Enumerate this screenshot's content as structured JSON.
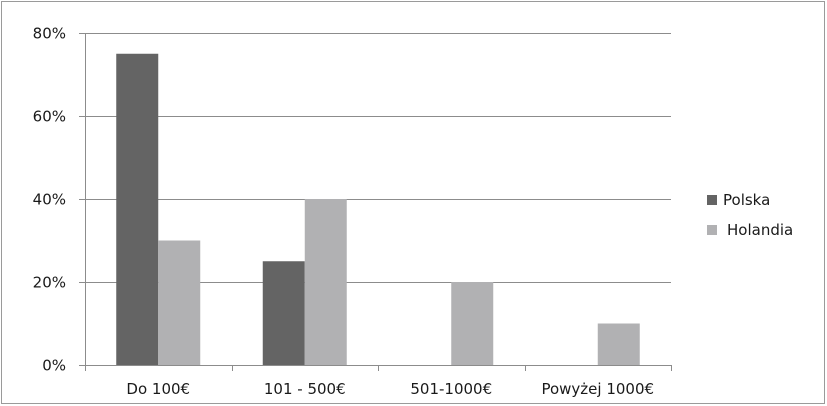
{
  "chart_data": {
    "type": "bar",
    "categories": [
      "Do 100€",
      "101 - 500€",
      "501-1000€",
      "Powyżej 1000€"
    ],
    "series": [
      {
        "name": "Polska",
        "values": [
          75,
          25,
          0,
          0
        ],
        "color": "#646464"
      },
      {
        "name": "Holandia",
        "values": [
          30,
          40,
          20,
          10
        ],
        "color": "#b1b1b3"
      }
    ],
    "ylim": [
      0,
      80
    ],
    "yticks": [
      0,
      20,
      40,
      60,
      80
    ],
    "ytick_labels": [
      "0%",
      "20%",
      "40%",
      "60%",
      "80%"
    ],
    "title": "",
    "xlabel": "",
    "ylabel": "",
    "grid": true,
    "legend_position": "right"
  }
}
